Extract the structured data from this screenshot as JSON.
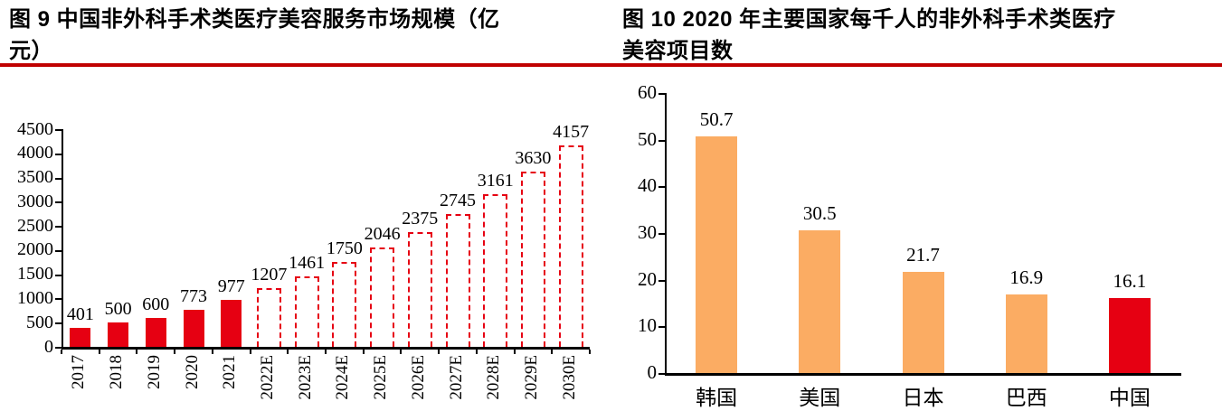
{
  "figures": {
    "fig9": {
      "title_line1": "图 9 中国非外科手术类医疗美容服务市场规模（亿",
      "title_line2": "元）"
    },
    "fig10": {
      "title_line1": "图 10 2020 年主要国家每千人的非外科手术类医疗",
      "title_line2": "美容项目数"
    }
  },
  "colors": {
    "rule_red": "#C00000",
    "bar_red": "#E60012",
    "bar_orange": "#FBAC63",
    "axis_black": "#000000"
  },
  "chart_data": [
    {
      "type": "bar",
      "title": "图 9 中国非外科手术类医疗美容服务市场规模（亿元）",
      "categories": [
        "2017",
        "2018",
        "2019",
        "2020",
        "2021",
        "2022E",
        "2023E",
        "2024E",
        "2025E",
        "2026E",
        "2027E",
        "2028E",
        "2029E",
        "2030E"
      ],
      "values": [
        401,
        500,
        600,
        773,
        977,
        1207,
        1461,
        1750,
        2046,
        2375,
        2745,
        3161,
        3630,
        4157
      ],
      "bar_styles": [
        "solid",
        "solid",
        "solid",
        "solid",
        "solid",
        "dashed",
        "dashed",
        "dashed",
        "dashed",
        "dashed",
        "dashed",
        "dashed",
        "dashed",
        "dashed"
      ],
      "bar_color": "#E60012",
      "xlabel": "",
      "ylabel": "",
      "ylim": [
        0,
        4500
      ],
      "ytick_step": 500,
      "grid": false,
      "legend": null,
      "data_labels": true,
      "x_tick_label_rotation": 90
    },
    {
      "type": "bar",
      "title": "图 10 2020 年主要国家每千人的非外科手术类医疗美容项目数",
      "categories": [
        "韩国",
        "美国",
        "日本",
        "巴西",
        "中国"
      ],
      "values": [
        50.7,
        30.5,
        21.7,
        16.9,
        16.1
      ],
      "bar_colors": [
        "#FBAC63",
        "#FBAC63",
        "#FBAC63",
        "#FBAC63",
        "#E60012"
      ],
      "xlabel": "",
      "ylabel": "",
      "ylim": [
        0,
        60
      ],
      "ytick_step": 10,
      "grid": false,
      "legend": null,
      "data_labels": true,
      "x_tick_label_rotation": 0
    }
  ]
}
